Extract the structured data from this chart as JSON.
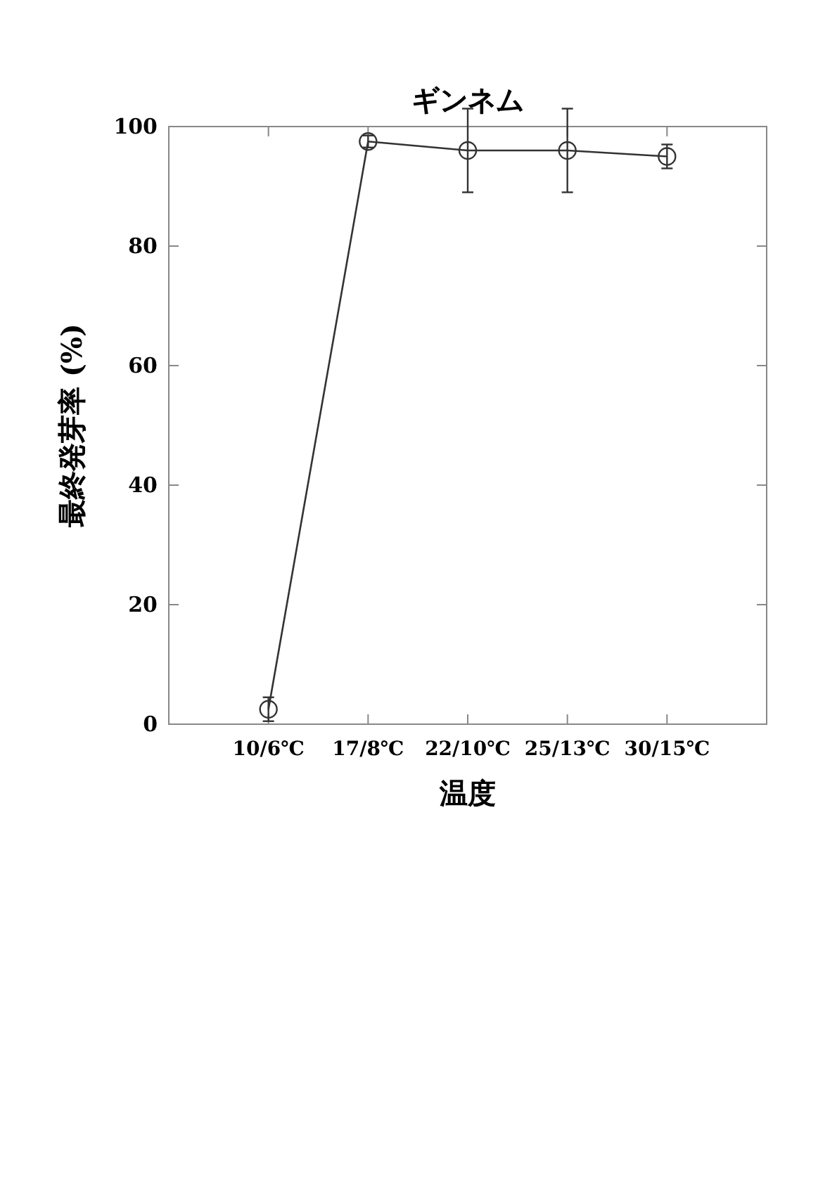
{
  "chart_data": {
    "type": "line",
    "title": "ギンネム",
    "xlabel": "温度",
    "ylabel": "最終発芽率 (%)",
    "categories": [
      "10/6℃",
      "17/8℃",
      "22/10℃",
      "25/13℃",
      "30/15℃"
    ],
    "values": [
      2.5,
      97.5,
      96,
      96,
      95
    ],
    "errors": [
      2,
      1,
      7,
      7,
      2
    ],
    "color": "#333333",
    "marker": "circle",
    "line_style": "solid",
    "grid": false,
    "legend": false,
    "ylim": [
      0,
      100
    ],
    "yticks": [
      0,
      20,
      40,
      60,
      80,
      100
    ]
  }
}
